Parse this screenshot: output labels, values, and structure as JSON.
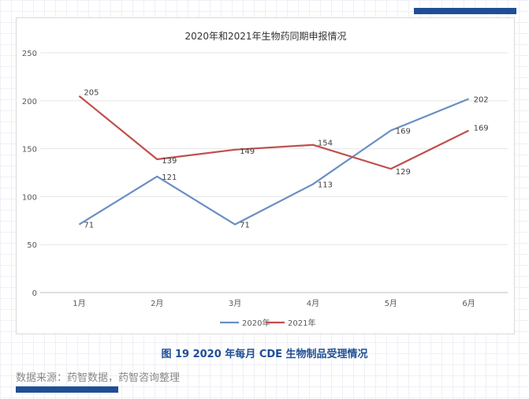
{
  "caption": "图 19 2020 年每月 CDE 生物制品受理情况",
  "source": "数据来源：药智数据，药智咨询整理",
  "colors": {
    "accent": "#1f4e96",
    "series_2020": "#6b8fc2",
    "series_2021": "#c0504d"
  },
  "chart_data": {
    "type": "line",
    "title": "2020年和2021年生物药同期申报情况",
    "categories": [
      "1月",
      "2月",
      "3月",
      "4月",
      "5月",
      "6月"
    ],
    "ylim": [
      0,
      250
    ],
    "yticks": [
      0,
      50,
      100,
      150,
      200,
      250
    ],
    "grid": true,
    "legend": "bottom",
    "series": [
      {
        "name": "2020年",
        "color": "#6b8fc2",
        "values": [
          71,
          121,
          71,
          113,
          169,
          202
        ],
        "label_values": [
          "71",
          "121",
          "71",
          "113",
          "169",
          "202"
        ]
      },
      {
        "name": "2021年",
        "color": "#c0504d",
        "values": [
          205,
          139,
          149,
          154,
          129,
          169
        ],
        "label_values": [
          "205",
          "139",
          "149",
          "154",
          "129",
          "169"
        ]
      }
    ]
  }
}
